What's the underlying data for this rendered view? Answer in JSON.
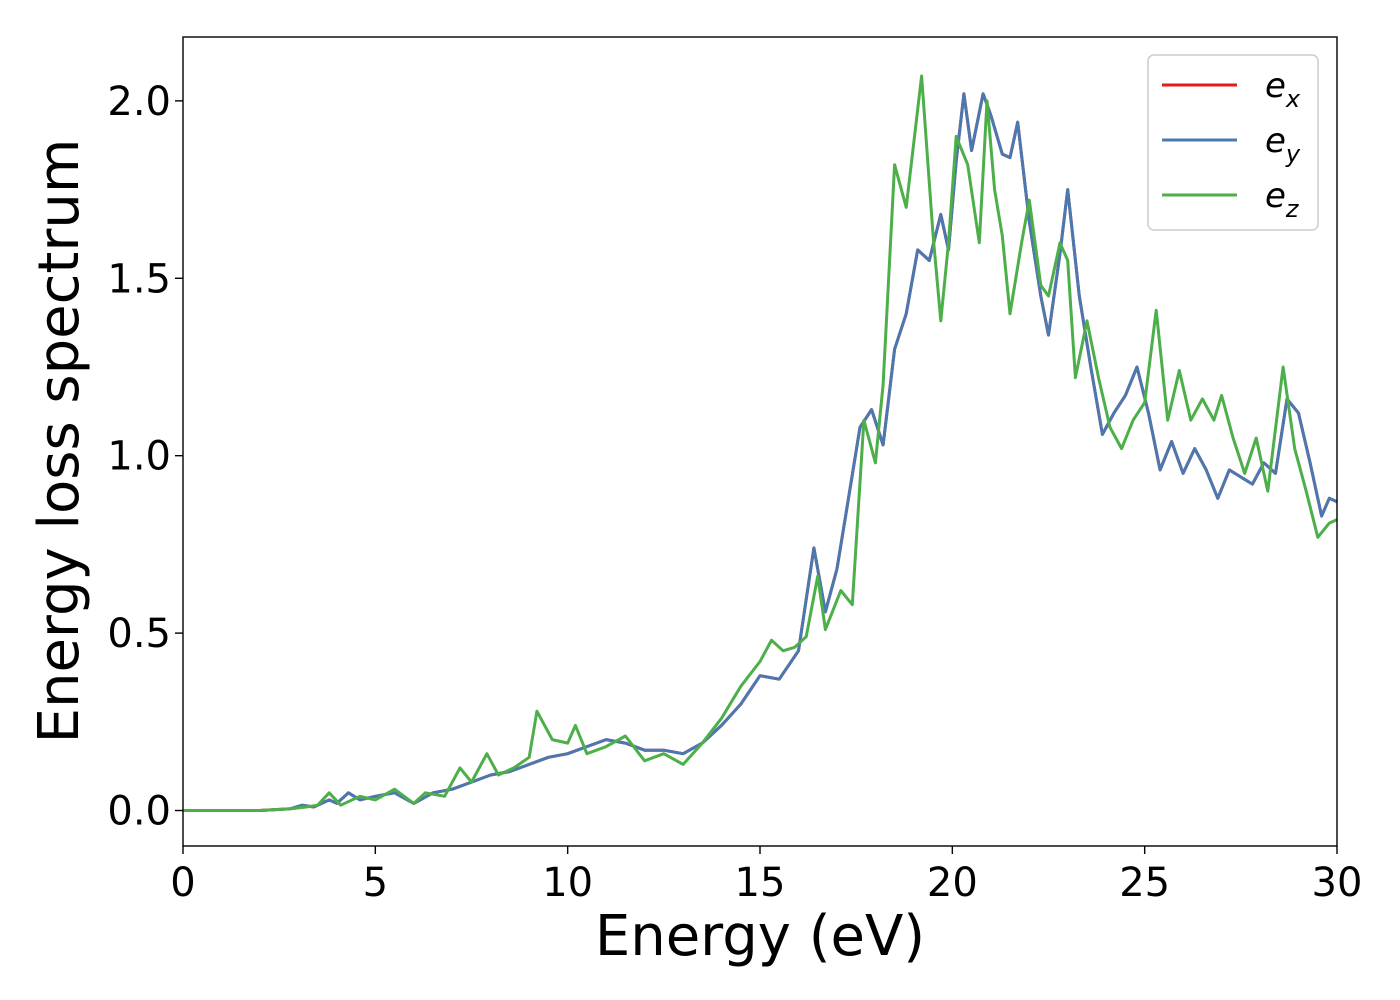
{
  "chart_data": {
    "type": "line",
    "title": "",
    "xlabel": "Energy (eV)",
    "ylabel": "Energy loss spectrum",
    "xlim": [
      0,
      30
    ],
    "ylim": [
      -0.1,
      2.18
    ],
    "xticks": [
      0,
      5,
      10,
      15,
      20,
      25,
      30
    ],
    "xtick_labels": [
      "0",
      "5",
      "10",
      "15",
      "20",
      "25",
      "30"
    ],
    "yticks": [
      0.0,
      0.5,
      1.0,
      1.5,
      2.0
    ],
    "ytick_labels": [
      "0.0",
      "0.5",
      "1.0",
      "1.5",
      "2.0"
    ],
    "grid": false,
    "legend_position": "top-right",
    "series": [
      {
        "name": "e_x",
        "legend_base": "e",
        "legend_sub": "x",
        "color": "#e41a1c",
        "x": [
          0,
          2,
          2.8,
          3.1,
          3.4,
          3.8,
          4.0,
          4.3,
          4.6,
          5.0,
          5.5,
          6.0,
          6.5,
          7.0,
          7.5,
          8.0,
          8.5,
          9.0,
          9.5,
          10.0,
          10.5,
          11.0,
          11.5,
          12.0,
          12.5,
          13.0,
          13.5,
          14.0,
          14.5,
          15.0,
          15.5,
          16.0,
          16.4,
          16.7,
          17.0,
          17.3,
          17.6,
          17.9,
          18.2,
          18.5,
          18.8,
          19.1,
          19.4,
          19.7,
          19.9,
          20.1,
          20.3,
          20.5,
          20.8,
          21.0,
          21.3,
          21.5,
          21.7,
          22.0,
          22.3,
          22.5,
          22.8,
          23.0,
          23.3,
          23.6,
          23.9,
          24.2,
          24.5,
          24.8,
          25.1,
          25.4,
          25.7,
          26.0,
          26.3,
          26.6,
          26.9,
          27.2,
          27.5,
          27.8,
          28.1,
          28.4,
          28.7,
          29.0,
          29.3,
          29.6,
          29.8,
          30.0
        ],
        "values": [
          0.0,
          0.0,
          0.005,
          0.015,
          0.01,
          0.03,
          0.02,
          0.05,
          0.03,
          0.04,
          0.05,
          0.02,
          0.05,
          0.06,
          0.08,
          0.1,
          0.11,
          0.13,
          0.15,
          0.16,
          0.18,
          0.2,
          0.19,
          0.17,
          0.17,
          0.16,
          0.19,
          0.24,
          0.3,
          0.38,
          0.37,
          0.45,
          0.74,
          0.56,
          0.68,
          0.88,
          1.08,
          1.13,
          1.03,
          1.3,
          1.4,
          1.58,
          1.55,
          1.68,
          1.58,
          1.83,
          2.02,
          1.86,
          2.02,
          1.96,
          1.85,
          1.84,
          1.94,
          1.66,
          1.45,
          1.34,
          1.57,
          1.75,
          1.45,
          1.25,
          1.06,
          1.12,
          1.17,
          1.25,
          1.12,
          0.96,
          1.04,
          0.95,
          1.02,
          0.96,
          0.88,
          0.96,
          0.94,
          0.92,
          0.98,
          0.95,
          1.16,
          1.12,
          0.98,
          0.83,
          0.88,
          0.87
        ]
      },
      {
        "name": "e_y",
        "legend_base": "e",
        "legend_sub": "y",
        "color": "#4a78b0",
        "x": [
          0,
          2,
          2.8,
          3.1,
          3.4,
          3.8,
          4.0,
          4.3,
          4.6,
          5.0,
          5.5,
          6.0,
          6.5,
          7.0,
          7.5,
          8.0,
          8.5,
          9.0,
          9.5,
          10.0,
          10.5,
          11.0,
          11.5,
          12.0,
          12.5,
          13.0,
          13.5,
          14.0,
          14.5,
          15.0,
          15.5,
          16.0,
          16.4,
          16.7,
          17.0,
          17.3,
          17.6,
          17.9,
          18.2,
          18.5,
          18.8,
          19.1,
          19.4,
          19.7,
          19.9,
          20.1,
          20.3,
          20.5,
          20.8,
          21.0,
          21.3,
          21.5,
          21.7,
          22.0,
          22.3,
          22.5,
          22.8,
          23.0,
          23.3,
          23.6,
          23.9,
          24.2,
          24.5,
          24.8,
          25.1,
          25.4,
          25.7,
          26.0,
          26.3,
          26.6,
          26.9,
          27.2,
          27.5,
          27.8,
          28.1,
          28.4,
          28.7,
          29.0,
          29.3,
          29.6,
          29.8,
          30.0
        ],
        "values": [
          0.0,
          0.0,
          0.005,
          0.015,
          0.01,
          0.03,
          0.02,
          0.05,
          0.03,
          0.04,
          0.05,
          0.02,
          0.05,
          0.06,
          0.08,
          0.1,
          0.11,
          0.13,
          0.15,
          0.16,
          0.18,
          0.2,
          0.19,
          0.17,
          0.17,
          0.16,
          0.19,
          0.24,
          0.3,
          0.38,
          0.37,
          0.45,
          0.74,
          0.56,
          0.68,
          0.88,
          1.08,
          1.13,
          1.03,
          1.3,
          1.4,
          1.58,
          1.55,
          1.68,
          1.58,
          1.83,
          2.02,
          1.86,
          2.02,
          1.96,
          1.85,
          1.84,
          1.94,
          1.66,
          1.45,
          1.34,
          1.57,
          1.75,
          1.45,
          1.25,
          1.06,
          1.12,
          1.17,
          1.25,
          1.12,
          0.96,
          1.04,
          0.95,
          1.02,
          0.96,
          0.88,
          0.96,
          0.94,
          0.92,
          0.98,
          0.95,
          1.16,
          1.12,
          0.98,
          0.83,
          0.88,
          0.87
        ]
      },
      {
        "name": "e_z",
        "legend_base": "e",
        "legend_sub": "z",
        "color": "#4daf4a",
        "x": [
          0,
          2,
          2.8,
          3.2,
          3.5,
          3.8,
          4.1,
          4.6,
          5.0,
          5.5,
          6.0,
          6.3,
          6.8,
          7.2,
          7.5,
          7.9,
          8.2,
          8.6,
          9.0,
          9.2,
          9.6,
          10.0,
          10.2,
          10.5,
          11.0,
          11.5,
          12.0,
          12.5,
          13.0,
          13.5,
          14.0,
          14.5,
          15.0,
          15.3,
          15.6,
          15.9,
          16.2,
          16.5,
          16.7,
          17.1,
          17.4,
          17.7,
          18.0,
          18.2,
          18.5,
          18.8,
          19.2,
          19.5,
          19.7,
          19.9,
          20.1,
          20.4,
          20.7,
          20.9,
          21.1,
          21.3,
          21.5,
          21.8,
          22.0,
          22.3,
          22.5,
          22.8,
          23.0,
          23.2,
          23.5,
          23.8,
          24.1,
          24.4,
          24.7,
          25.0,
          25.3,
          25.6,
          25.9,
          26.2,
          26.5,
          26.8,
          27.0,
          27.3,
          27.6,
          27.9,
          28.2,
          28.6,
          28.9,
          29.2,
          29.5,
          29.8,
          30.0
        ],
        "values": [
          0.0,
          0.0,
          0.005,
          0.01,
          0.015,
          0.05,
          0.015,
          0.04,
          0.03,
          0.06,
          0.02,
          0.05,
          0.04,
          0.12,
          0.08,
          0.16,
          0.1,
          0.12,
          0.15,
          0.28,
          0.2,
          0.19,
          0.24,
          0.16,
          0.18,
          0.21,
          0.14,
          0.16,
          0.13,
          0.19,
          0.26,
          0.35,
          0.42,
          0.48,
          0.45,
          0.46,
          0.49,
          0.66,
          0.51,
          0.62,
          0.58,
          1.1,
          0.98,
          1.2,
          1.82,
          1.7,
          2.07,
          1.62,
          1.38,
          1.6,
          1.9,
          1.82,
          1.6,
          2.0,
          1.75,
          1.62,
          1.4,
          1.6,
          1.72,
          1.48,
          1.45,
          1.6,
          1.55,
          1.22,
          1.38,
          1.22,
          1.08,
          1.02,
          1.1,
          1.15,
          1.41,
          1.1,
          1.24,
          1.1,
          1.16,
          1.1,
          1.17,
          1.05,
          0.95,
          1.05,
          0.9,
          1.25,
          1.02,
          0.9,
          0.77,
          0.81,
          0.82
        ]
      }
    ]
  }
}
